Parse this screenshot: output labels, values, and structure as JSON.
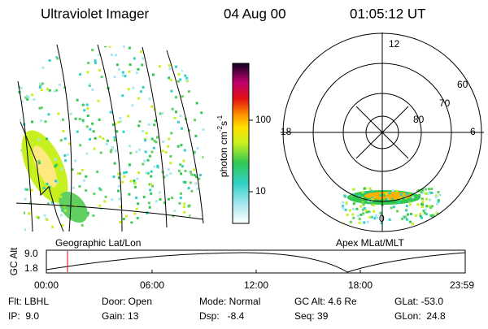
{
  "header": {
    "title": "Ultraviolet Imager",
    "date": "04 Aug 00",
    "time": "01:05:12 UT"
  },
  "colorbar": {
    "label": [
      "photon cm",
      "-2",
      "s",
      "-1"
    ],
    "ticks": [
      "100",
      "10"
    ]
  },
  "polar": {
    "mlt_labels": [
      "12",
      "18",
      "6",
      "0"
    ],
    "lat_labels": [
      "60",
      "70",
      "80"
    ]
  },
  "panels": {
    "left": "Geographic Lat/Lon",
    "right": "Apex MLat/MLT"
  },
  "altitude": {
    "axis_label": "GC Alt",
    "ticks": [
      "9.0",
      "1.8"
    ],
    "times": [
      "00:00",
      "06:00",
      "12:00",
      "18:00",
      "23:59"
    ]
  },
  "info": [
    [
      "Flt: LBHL",
      "Door: Open",
      "Mode: Normal",
      "GC Alt: 4.6 Re",
      "GLat: -53.0"
    ],
    [
      "IP:  9.0",
      "Gain: 13",
      "Dsp:   -8.4",
      "Seq: 39",
      "GLon:  24.8"
    ]
  ]
}
